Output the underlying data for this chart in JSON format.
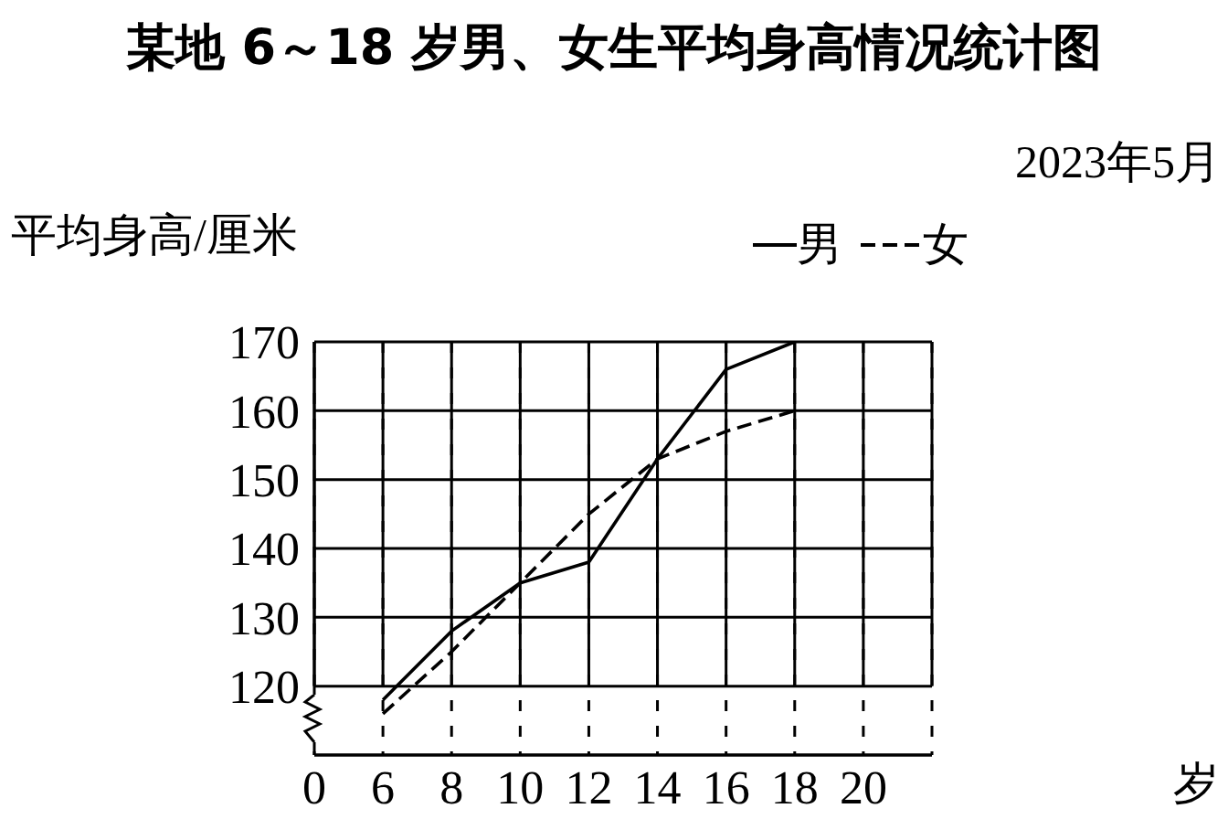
{
  "chart_data": {
    "type": "line",
    "title": "某地 6～18 岁男、女生平均身高情况统计图",
    "annotations": [
      "2023年5月",
      "岁"
    ],
    "ylabel": "平均身高/厘米",
    "categories": [
      "0",
      "6",
      "8",
      "10",
      "12",
      "14",
      "16",
      "18",
      "20",
      null
    ],
    "series": [
      {
        "name": "男",
        "color": "#000000",
        "line_style": "solid",
        "values": [
          null,
          118,
          128,
          135,
          138,
          153,
          166,
          170,
          null,
          null
        ]
      },
      {
        "name": "女",
        "color": "#000000",
        "line_style": "dashed",
        "values": [
          null,
          116,
          125,
          135,
          145,
          153,
          157,
          160,
          null,
          null
        ]
      }
    ],
    "ylim": [
      110,
      170
    ],
    "yticks": [
      120,
      130,
      140,
      150,
      160,
      170
    ],
    "grid": true,
    "legend": "top right",
    "marker": "none"
  }
}
